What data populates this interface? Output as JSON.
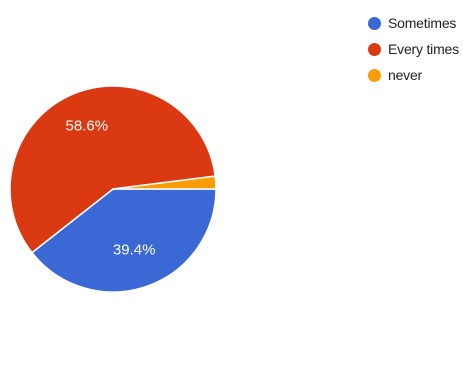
{
  "chart_data": {
    "type": "pie",
    "categories": [
      "Sometimes",
      "Every times",
      "never"
    ],
    "values": [
      39.4,
      58.6,
      2.0
    ],
    "value_labels": [
      "39.4%",
      "58.6%",
      ""
    ],
    "colors": [
      "#3a68d4",
      "#da3912",
      "#fb9c06"
    ],
    "legend_position": "top-right"
  }
}
